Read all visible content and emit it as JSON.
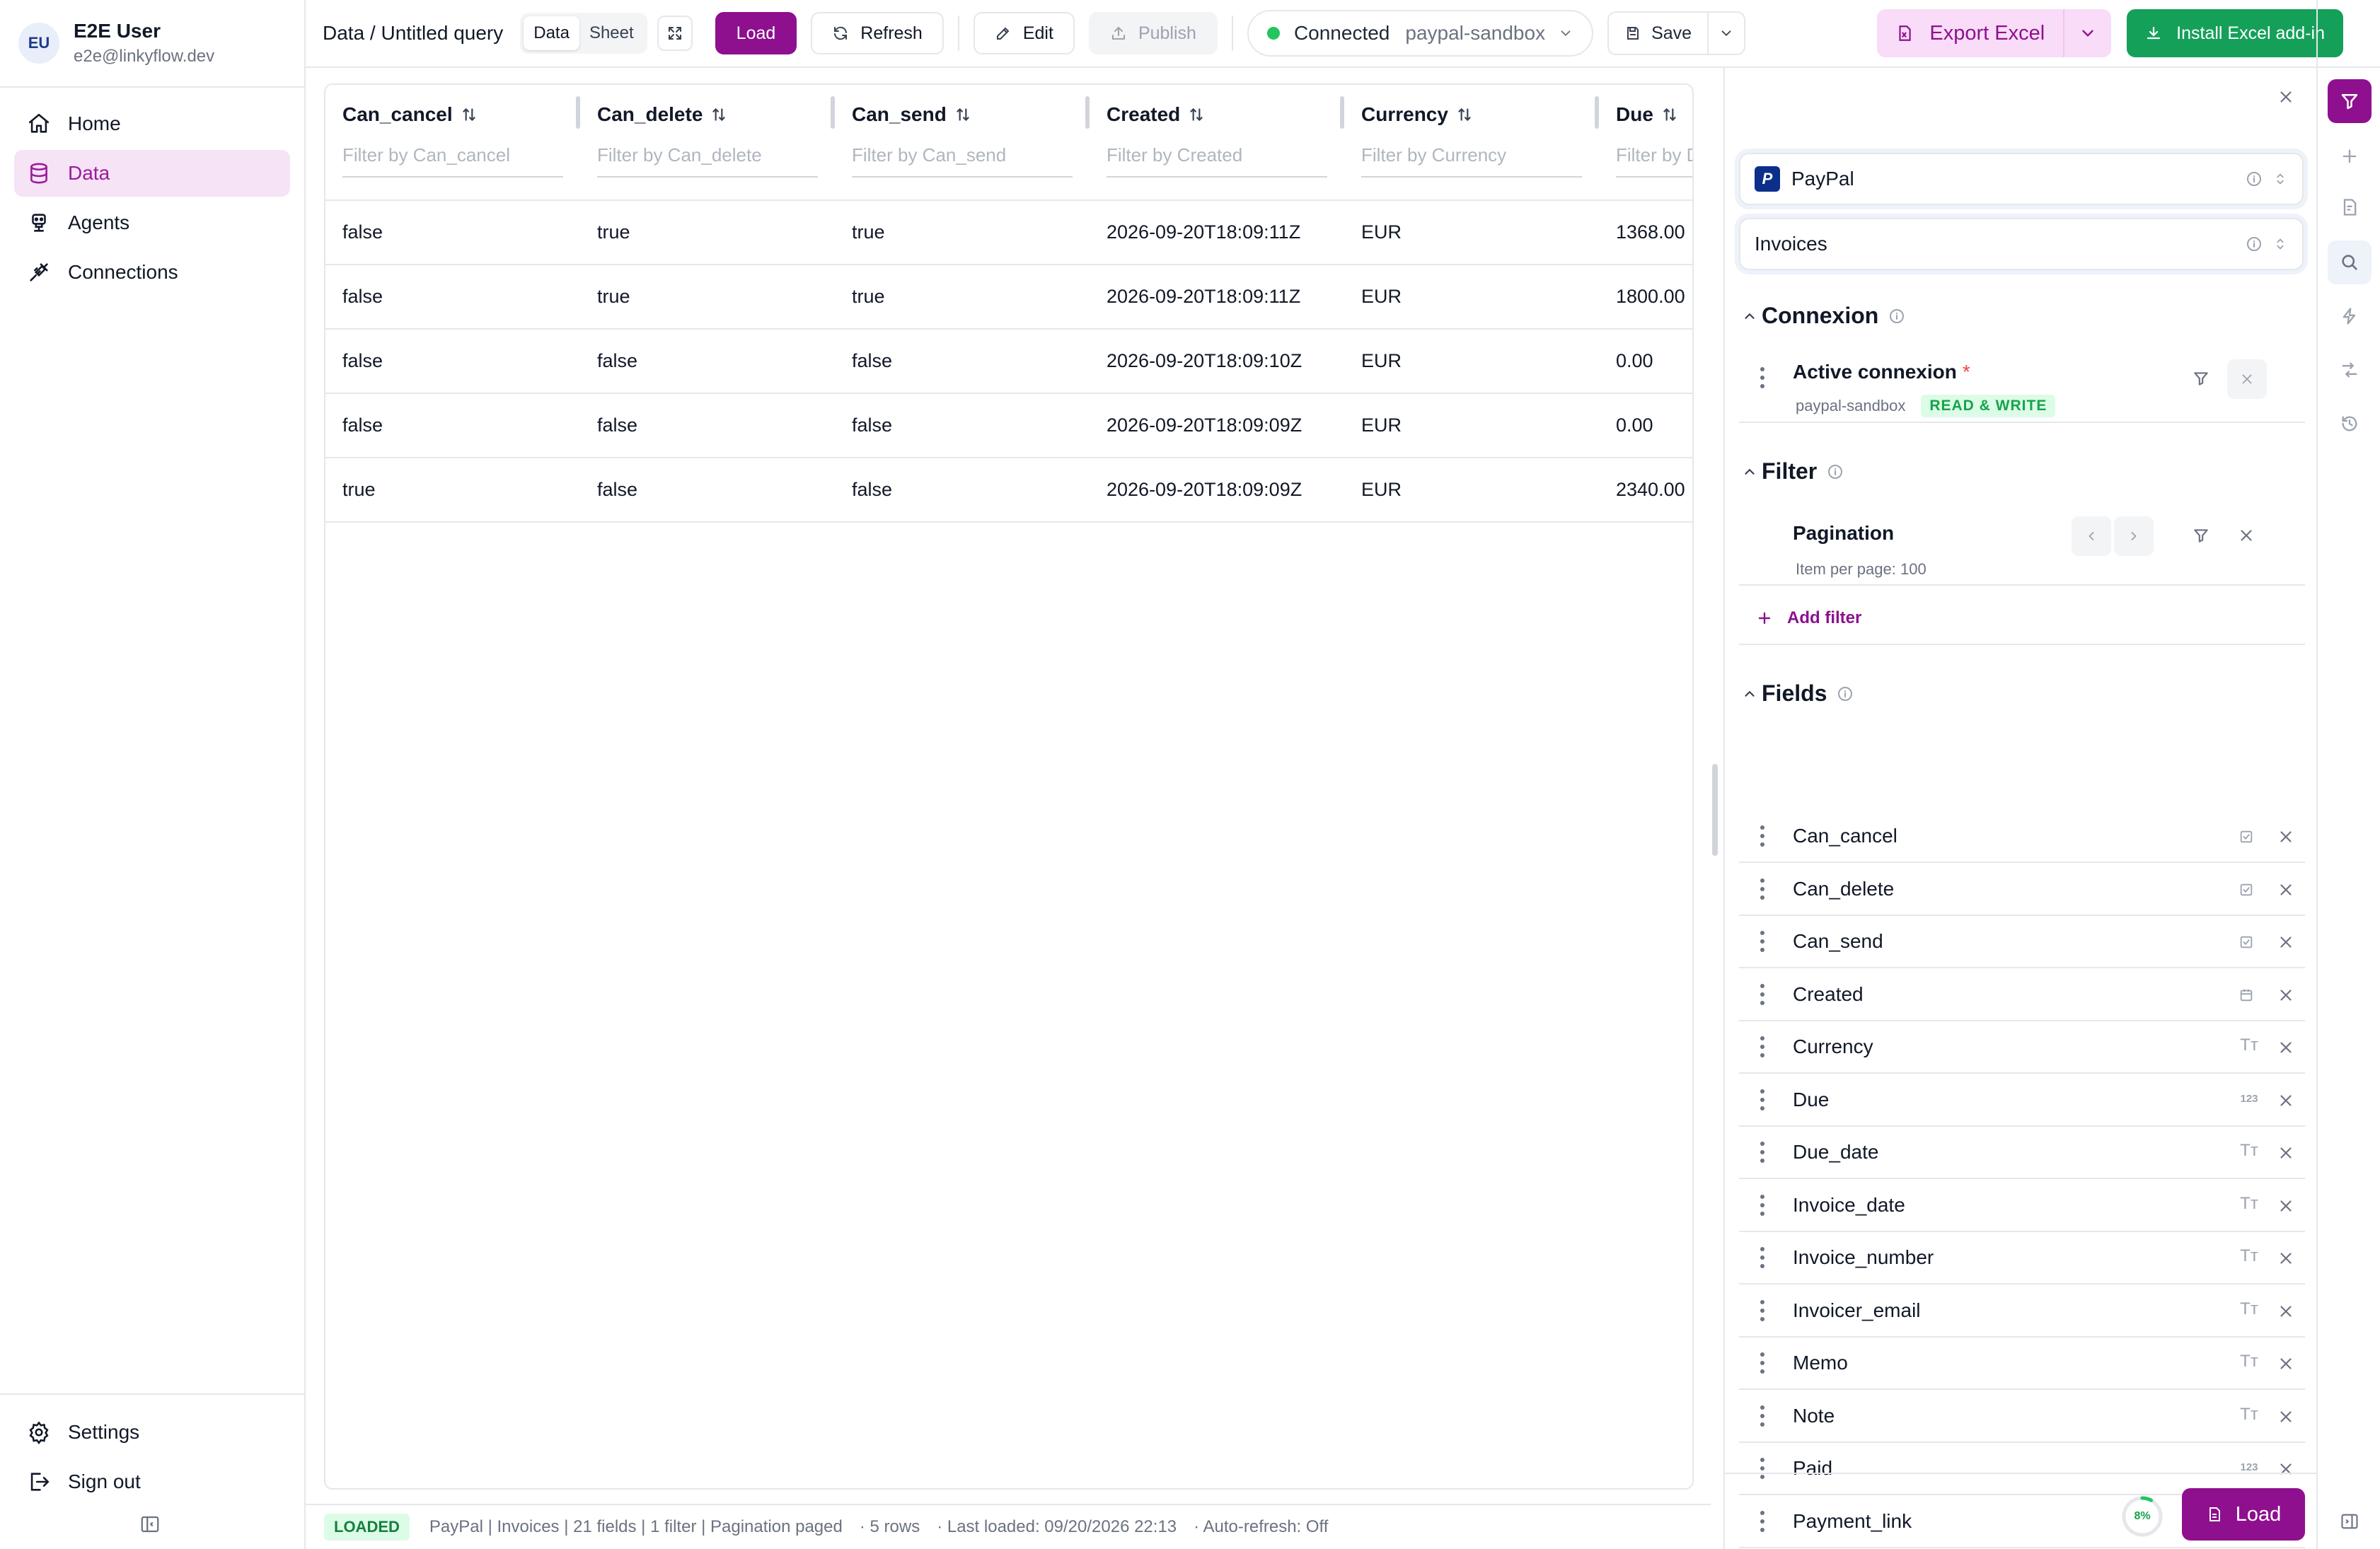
{
  "user": {
    "initials": "EU",
    "name": "E2E User",
    "email": "e2e@linkyflow.dev"
  },
  "nav": {
    "items": [
      {
        "label": "Home",
        "icon": "home-icon"
      },
      {
        "label": "Data",
        "icon": "database-icon",
        "active": true
      },
      {
        "label": "Agents",
        "icon": "robot-icon"
      },
      {
        "label": "Connections",
        "icon": "plug-icon"
      }
    ],
    "bottom": [
      {
        "label": "Settings",
        "icon": "gear-icon"
      },
      {
        "label": "Sign out",
        "icon": "sign-out-icon"
      }
    ]
  },
  "toolbar": {
    "breadcrumb": "Data / Untitled query",
    "view_data": "Data",
    "view_sheet": "Sheet",
    "load_label": "Load",
    "refresh_label": "Refresh",
    "edit_label": "Edit",
    "publish_label": "Publish",
    "connection_status": "Connected",
    "connection_name": "paypal-sandbox",
    "save_label": "Save",
    "export_label": "Export Excel",
    "install_label": "Install Excel add-in"
  },
  "table": {
    "columns": [
      {
        "name": "Can_cancel",
        "filter_placeholder": "Filter by Can_cancel"
      },
      {
        "name": "Can_delete",
        "filter_placeholder": "Filter by Can_delete"
      },
      {
        "name": "Can_send",
        "filter_placeholder": "Filter by Can_send"
      },
      {
        "name": "Created",
        "filter_placeholder": "Filter by Created"
      },
      {
        "name": "Currency",
        "filter_placeholder": "Filter by Currency"
      },
      {
        "name": "Due",
        "filter_placeholder": "Filter by Due"
      }
    ],
    "rows": [
      [
        "false",
        "true",
        "true",
        "2026-09-20T18:09:11Z",
        "EUR",
        "1368.00"
      ],
      [
        "false",
        "true",
        "true",
        "2026-09-20T18:09:11Z",
        "EUR",
        "1800.00"
      ],
      [
        "false",
        "false",
        "false",
        "2026-09-20T18:09:10Z",
        "EUR",
        "0.00"
      ],
      [
        "false",
        "false",
        "false",
        "2026-09-20T18:09:09Z",
        "EUR",
        "0.00"
      ],
      [
        "true",
        "false",
        "false",
        "2026-09-20T18:09:09Z",
        "EUR",
        "2340.00"
      ]
    ]
  },
  "status": {
    "badge": "LOADED",
    "summary": "PayPal | Invoices | 21 fields | 1 filter | Pagination paged",
    "rows": "· 5 rows",
    "last_loaded": "· Last loaded: 09/20/2026 22:13",
    "auto_refresh": "· Auto-refresh: Off"
  },
  "panel": {
    "source": "PayPal",
    "resource": "Invoices",
    "connexion_title": "Connexion",
    "active_connexion": "Active connexion",
    "required_mark": "*",
    "connexion_name": "paypal-sandbox",
    "access": "READ & WRITE",
    "filter_title": "Filter",
    "pagination_title": "Pagination",
    "pagination_sub": "Item per page: 100",
    "add_filter": "Add filter",
    "fields_title": "Fields",
    "fields": [
      {
        "name": "Can_cancel",
        "type": "checkbox-icon"
      },
      {
        "name": "Can_delete",
        "type": "checkbox-icon"
      },
      {
        "name": "Can_send",
        "type": "checkbox-icon"
      },
      {
        "name": "Created",
        "type": "calendar-icon"
      },
      {
        "name": "Currency",
        "type": "text-type-icon"
      },
      {
        "name": "Due",
        "type": "number-type-icon"
      },
      {
        "name": "Due_date",
        "type": "text-type-icon"
      },
      {
        "name": "Invoice_date",
        "type": "text-type-icon"
      },
      {
        "name": "Invoice_number",
        "type": "text-type-icon"
      },
      {
        "name": "Invoicer_email",
        "type": "text-type-icon"
      },
      {
        "name": "Memo",
        "type": "text-type-icon"
      },
      {
        "name": "Note",
        "type": "text-type-icon"
      },
      {
        "name": "Paid",
        "type": "number-type-icon"
      },
      {
        "name": "Payment_link",
        "type": "text-type-icon"
      }
    ],
    "number_glyph": "123",
    "text_glyph": "Tт",
    "progress_label": "8%",
    "progress_fraction": 0.08,
    "load_label": "Load"
  },
  "colors": {
    "brand": "#8e108e",
    "brand_soft": "#f6e3f6",
    "success": "#15a05a",
    "border": "#e5e7eb"
  }
}
